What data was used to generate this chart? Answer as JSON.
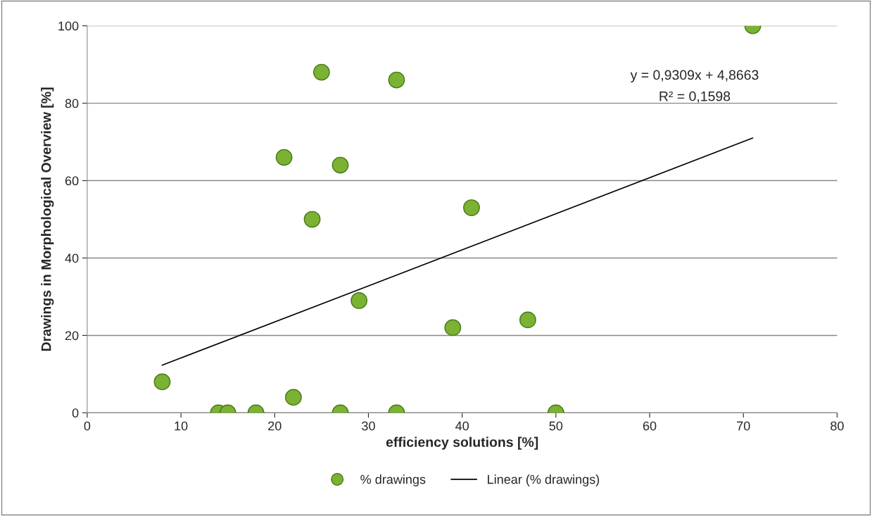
{
  "chart_data": {
    "type": "scatter",
    "xlabel": "efficiency solutions [%]",
    "ylabel": "Drawings in Morphological Overview [%]",
    "xlim": [
      0,
      80
    ],
    "xticks": [
      0,
      10,
      20,
      30,
      40,
      50,
      60,
      70,
      80
    ],
    "ylim": [
      0,
      100
    ],
    "yticks": [
      0,
      20,
      40,
      60,
      80,
      100
    ],
    "grid": "y",
    "legend": "bottom",
    "series": [
      {
        "name": "% drawings",
        "marker": "circle",
        "color": "#7cb233",
        "x": [
          8,
          14,
          15,
          18,
          22,
          27,
          33,
          50,
          21,
          24,
          25,
          27,
          29,
          33,
          39,
          41,
          47,
          71
        ],
        "values": [
          8,
          0,
          0,
          0,
          4,
          0,
          0,
          0,
          66,
          50,
          88,
          64,
          29,
          86,
          22,
          53,
          24,
          100
        ]
      },
      {
        "name": "Linear (% drawings)",
        "type": "line",
        "color": "#000000",
        "line_style": "solid",
        "x": [
          8,
          71
        ],
        "values": [
          12.3,
          71.0
        ]
      }
    ],
    "annotations": [
      "y = 0,9309x + 4,8663",
      "R² = 0,1598"
    ]
  }
}
